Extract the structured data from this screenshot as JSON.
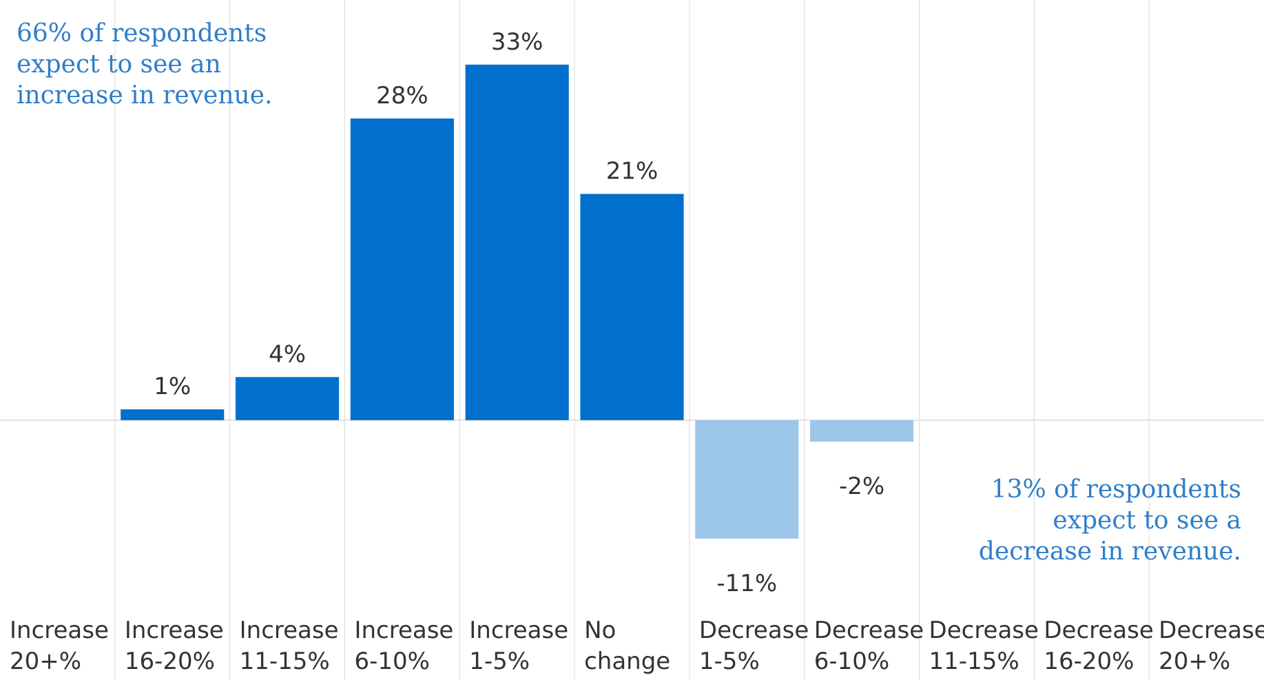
{
  "chart_data": {
    "type": "bar",
    "categories": [
      "Increase\n20+%",
      "Increase\n16-20%",
      "Increase\n11-15%",
      "Increase\n6-10%",
      "Increase\n1-5%",
      "No\nchange",
      "Decrease\n1-5%",
      "Decrease\n6-10%",
      "Decrease\n11-15%",
      "Decrease\n16-20%",
      "Decrease\n20+%"
    ],
    "values": [
      0,
      1,
      4,
      28,
      33,
      21,
      -11,
      -2,
      0,
      0,
      0
    ],
    "data_labels": [
      "",
      "1%",
      "4%",
      "28%",
      "33%",
      "21%",
      "-11%",
      "-2%",
      "",
      "",
      ""
    ],
    "ylim": [
      -16,
      39
    ],
    "title": "",
    "xlabel": "",
    "ylabel": "",
    "grid": "vertical separators on",
    "legend": "none",
    "colors": {
      "positive": "#0070cc",
      "negative": "#9dc7ea",
      "annotation": "#2f7ec8",
      "grid": "#d9d9d9",
      "text": "#333333"
    }
  },
  "annotations": {
    "increase": "66% of respondents\nexpect to see an\nincrease in revenue.",
    "decrease": "13% of respondents\nexpect to see a\ndecrease in revenue."
  }
}
